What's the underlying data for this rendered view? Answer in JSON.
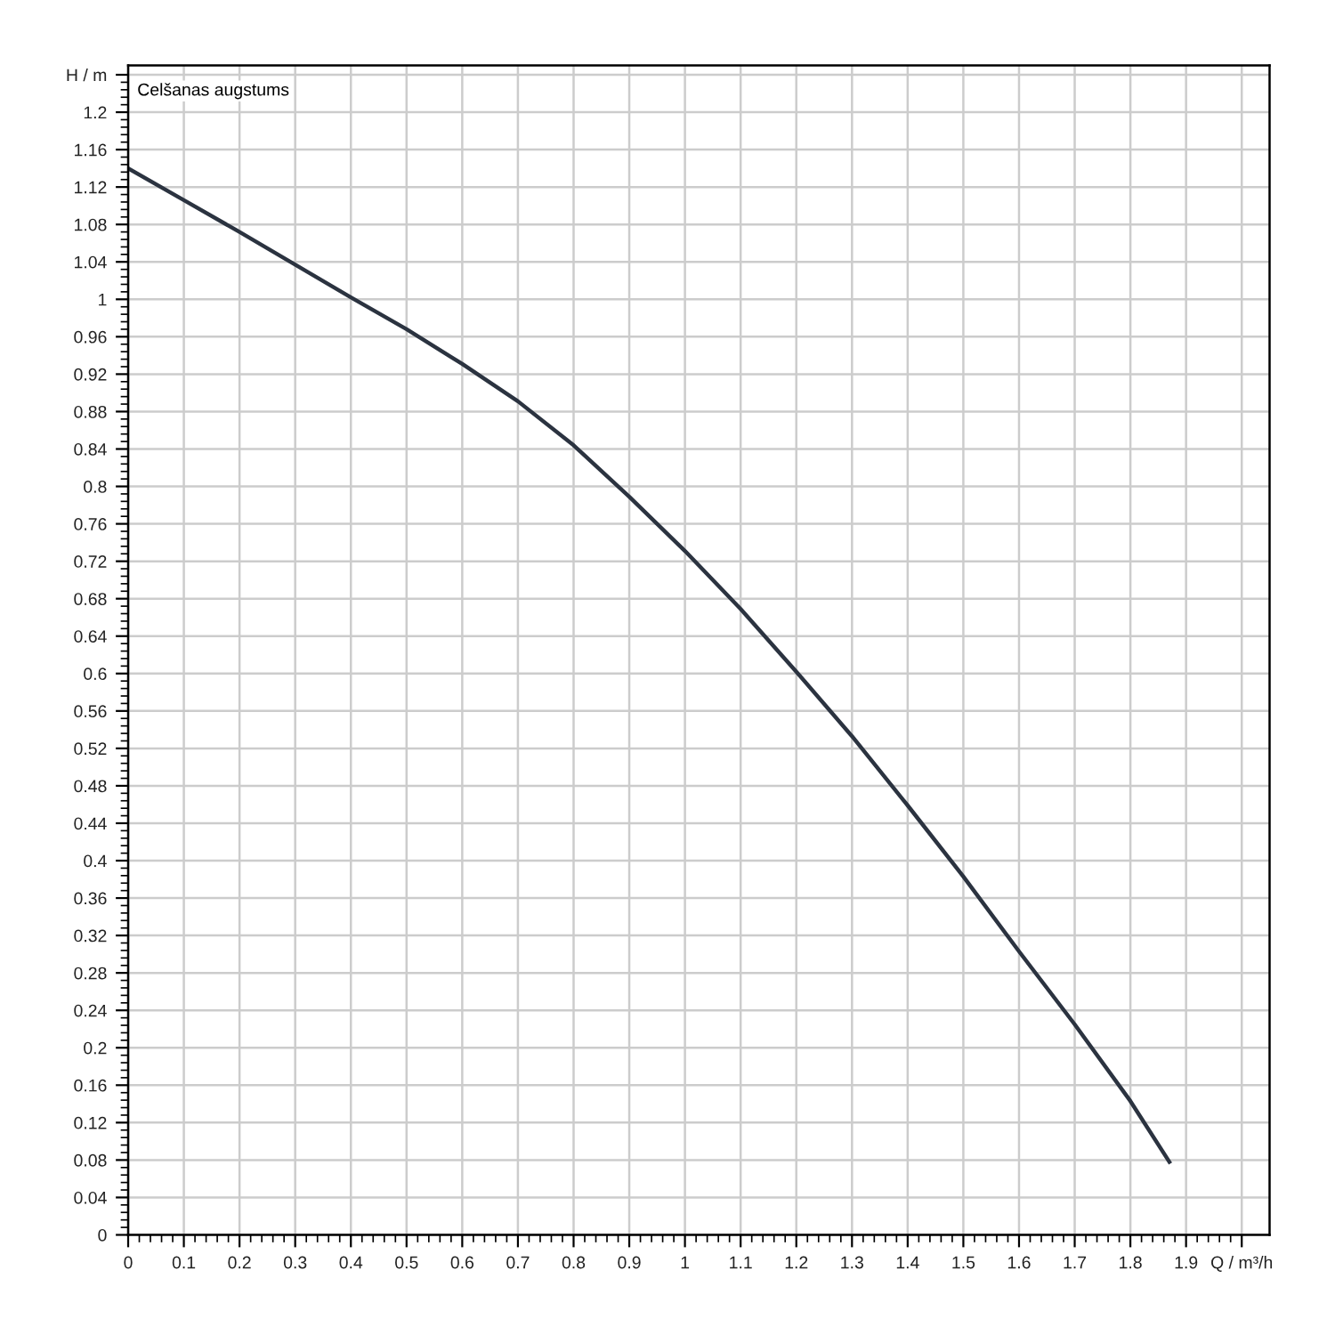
{
  "chart_data": {
    "type": "line",
    "title": "Celšanas augstums",
    "x": [
      0,
      0.1,
      0.2,
      0.3,
      0.4,
      0.5,
      0.6,
      0.7,
      0.8,
      0.9,
      1.0,
      1.1,
      1.2,
      1.3,
      1.4,
      1.5,
      1.6,
      1.7,
      1.8,
      1.87
    ],
    "series": [
      {
        "color": "#2b3340",
        "values": [
          1.14,
          1.106,
          1.072,
          1.037,
          1.002,
          0.968,
          0.931,
          0.891,
          0.844,
          0.789,
          0.731,
          0.669,
          0.602,
          0.533,
          0.459,
          0.383,
          0.303,
          0.225,
          0.143,
          0.078
        ]
      }
    ],
    "xlim": [
      0,
      2.05
    ],
    "ylim": [
      0,
      1.25
    ],
    "xticks": [
      0,
      0.1,
      0.2,
      0.3,
      0.4,
      0.5,
      0.6,
      0.7,
      0.8,
      0.9,
      1,
      1.1,
      1.2,
      1.3,
      1.4,
      1.5,
      1.6,
      1.7,
      1.8,
      1.9,
      {
        "value": 2.0,
        "label": "Q / m³/h"
      }
    ],
    "yticks": [
      0,
      0.04,
      0.08,
      0.12,
      0.16,
      0.2,
      0.24,
      0.28,
      0.32,
      0.36,
      0.4,
      0.44,
      0.48,
      0.52,
      0.56,
      0.6,
      0.64,
      0.68,
      0.72,
      0.76,
      0.8,
      0.84,
      0.88,
      0.92,
      0.96,
      1,
      1.04,
      1.08,
      1.12,
      1.16,
      1.2,
      {
        "value": 1.24,
        "label": "H / m"
      }
    ],
    "grid": true,
    "marker": "none",
    "line_style": "solid"
  }
}
